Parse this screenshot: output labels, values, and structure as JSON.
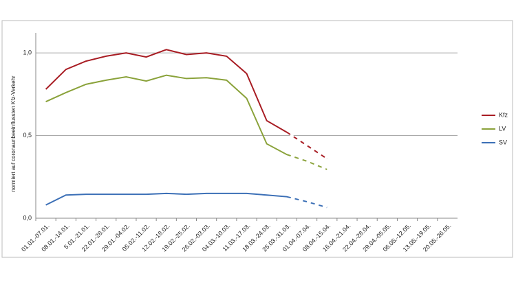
{
  "chart_data": {
    "type": "line",
    "y_label": "normiert auf coronaunbeeinflussten Kfz-Verkehr",
    "categories": [
      "01.01.-07.01.",
      "08.01.-14.01.",
      "5.01.-21.01.",
      "22.01.-28.01.",
      "29.01.-04.02.",
      "05.02.-11.02.",
      "12.02.-18.02.",
      "19.02.-25.02.",
      "26.02.-03.03.",
      "04.03.-10.03.",
      "11.03.-17.03.",
      "18.03.-24.03.",
      "25.03.-31.03.",
      "01.04.-07.04.",
      "08.04.-15.04.",
      "16.04.-21.04.",
      "22.04.-28.04.",
      "29.04.-05.05.",
      "06.05.-12.05.",
      "13.05.-19.05.",
      "20.05.-26.05."
    ],
    "series": [
      {
        "name": "Kfz",
        "color": "#a81c23",
        "values": [
          0.78,
          0.9,
          0.95,
          0.98,
          1.0,
          0.975,
          1.02,
          0.99,
          1.0,
          0.98,
          0.875,
          0.59,
          0.52,
          0.44,
          0.36,
          null,
          null,
          null,
          null,
          null,
          null
        ]
      },
      {
        "name": "LV",
        "color": "#8aa23a",
        "values": [
          0.705,
          0.76,
          0.81,
          0.835,
          0.855,
          0.83,
          0.865,
          0.845,
          0.85,
          0.835,
          0.725,
          0.45,
          0.385,
          0.345,
          0.295,
          null,
          null,
          null,
          null,
          null,
          null
        ]
      },
      {
        "name": "SV",
        "color": "#3b6fb6",
        "values": [
          0.08,
          0.14,
          0.145,
          0.145,
          0.145,
          0.145,
          0.15,
          0.145,
          0.15,
          0.15,
          0.15,
          0.14,
          0.13,
          0.1,
          0.065,
          null,
          null,
          null,
          null,
          null,
          null
        ]
      }
    ],
    "dashed_from": "25.03.-31.03.",
    "ylim": [
      0,
      1.1
    ],
    "yticks": [
      {
        "value": 0,
        "label": "0,0"
      },
      {
        "value": 0.5,
        "label": "0,5"
      },
      {
        "value": 1.0,
        "label": "1,0"
      }
    ],
    "grid": true,
    "legend": "right"
  }
}
